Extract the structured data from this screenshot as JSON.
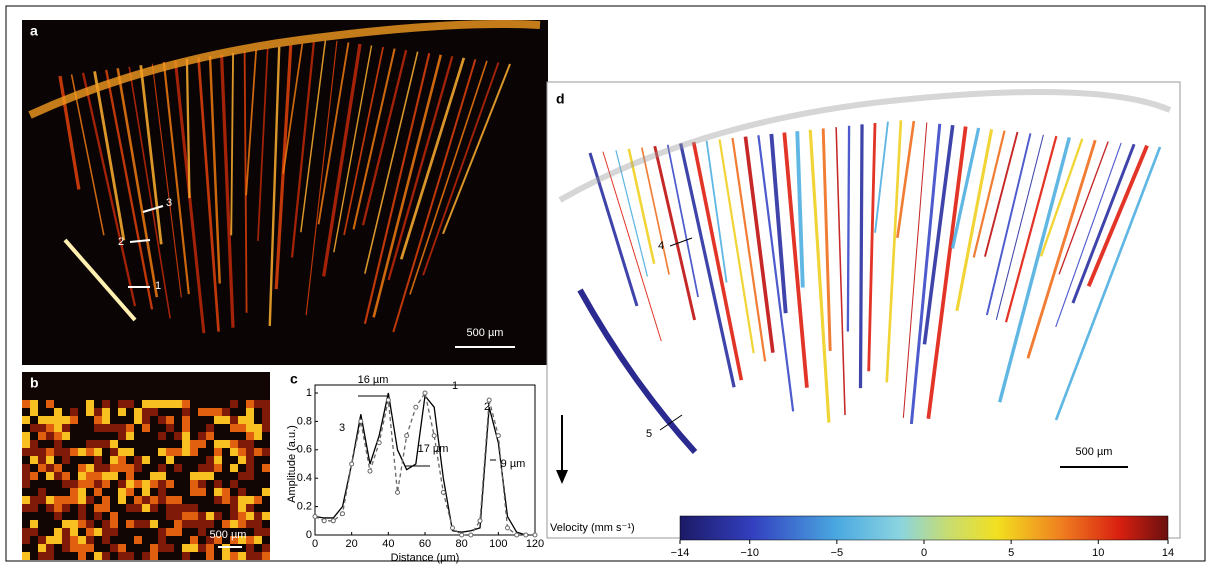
{
  "panels": {
    "a": {
      "label": "a",
      "scale_bar": "500 µm",
      "markers": [
        "1",
        "2",
        "3"
      ]
    },
    "b": {
      "label": "b",
      "scale_bar": "500 µm"
    },
    "c": {
      "label": "c"
    },
    "d": {
      "label": "d",
      "scale_bar": "500 µm",
      "markers": [
        "4",
        "5"
      ]
    }
  },
  "chart_data": {
    "type": "line",
    "xlabel": "Distance (µm)",
    "ylabel": "Amplitude (a.u.)",
    "x": [
      0,
      5,
      10,
      15,
      20,
      25,
      30,
      35,
      40,
      45,
      50,
      55,
      60,
      65,
      70,
      75,
      80,
      85,
      90,
      95,
      100,
      105,
      110,
      115,
      120
    ],
    "series": [
      {
        "color": "#000000",
        "style": "solid",
        "values": [
          0.13,
          0.12,
          0.12,
          0.2,
          0.5,
          0.85,
          0.5,
          0.7,
          1.0,
          0.6,
          0.46,
          0.5,
          0.98,
          0.9,
          0.4,
          0.03,
          0.02,
          0.03,
          0.05,
          0.9,
          0.65,
          0.13,
          0.02,
          0,
          0
        ]
      },
      {
        "color": "#666666",
        "style": "dashed",
        "values": [
          0.13,
          0.1,
          0.1,
          0.15,
          0.5,
          0.8,
          0.45,
          0.65,
          0.95,
          0.3,
          0.7,
          0.9,
          1.0,
          0.7,
          0.3,
          0.05,
          0,
          0,
          0.1,
          0.95,
          0.7,
          0.05,
          0,
          0,
          0
        ]
      }
    ],
    "annotations": [
      "16 µm",
      "17 µm",
      "9 µm",
      "1",
      "2",
      "3"
    ],
    "xlim": [
      0,
      120
    ],
    "ylim": [
      0,
      1
    ],
    "xticks": [
      0,
      20,
      40,
      60,
      80,
      100,
      120
    ],
    "yticks": [
      0,
      0.2,
      0.4,
      0.6,
      0.8,
      1
    ]
  },
  "colorbar": {
    "label": "Velocity (mm s⁻¹)",
    "lim": [
      -14,
      14
    ],
    "ticks": [
      {
        "value": -14,
        "label": "−14"
      },
      {
        "value": -10,
        "label": "−10"
      },
      {
        "value": -5,
        "label": "−5"
      },
      0,
      5,
      10,
      14
    ]
  }
}
